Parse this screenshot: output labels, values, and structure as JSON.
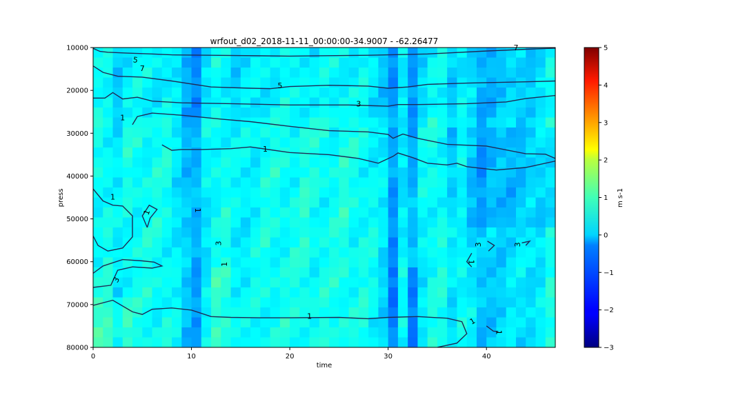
{
  "chart_data": {
    "type": "heatmap",
    "title": "wrfout_d02_2018-11-11_00:00:00-34.9007 - -62.26477",
    "xlabel": "time",
    "ylabel": "press",
    "xlim": [
      0,
      47
    ],
    "ylim": [
      80000,
      10000
    ],
    "x_ticks": [
      0,
      10,
      20,
      30,
      40
    ],
    "x_tick_labels": [
      "0",
      "10",
      "20",
      "30",
      "40"
    ],
    "y_ticks": [
      10000,
      20000,
      30000,
      40000,
      50000,
      60000,
      70000,
      80000
    ],
    "y_tick_labels": [
      "10000",
      "20000",
      "30000",
      "40000",
      "50000",
      "60000",
      "70000",
      "80000"
    ],
    "colormap": "jet",
    "colorbar": {
      "label": "m s-1",
      "vmin": -3,
      "vmax": 5,
      "ticks": [
        -3,
        -2,
        -1,
        0,
        1,
        2,
        3,
        4,
        5
      ],
      "tick_labels": [
        "−3",
        "−2",
        "−1",
        "0",
        "1",
        "2",
        "3",
        "4",
        "5"
      ]
    },
    "value_range_shown": [
      -1.2,
      1.0
    ],
    "contour_color": "#1f2a55",
    "contours": [
      {
        "level": 7,
        "points": [
          [
            0,
            10200
          ],
          [
            0.7,
            10900
          ],
          [
            1.5,
            11100
          ],
          [
            3.5,
            11300
          ],
          [
            6,
            11500
          ],
          [
            8,
            11700
          ],
          [
            12,
            11800
          ],
          [
            20,
            12000
          ],
          [
            28,
            11800
          ],
          [
            34,
            11500
          ],
          [
            40,
            10800
          ],
          [
            45,
            10300
          ],
          [
            47,
            10150
          ]
        ]
      },
      {
        "level": 5,
        "points": [
          [
            0,
            14300
          ],
          [
            1,
            15800
          ],
          [
            2.5,
            16700
          ],
          [
            5,
            16900
          ],
          [
            8,
            17800
          ],
          [
            12,
            19200
          ],
          [
            16,
            19500
          ],
          [
            18,
            19600
          ],
          [
            20,
            19100
          ],
          [
            24,
            18800
          ],
          [
            28,
            19000
          ],
          [
            30,
            19500
          ],
          [
            32,
            19200
          ],
          [
            34,
            18600
          ],
          [
            38,
            18300
          ],
          [
            44,
            18000
          ],
          [
            47,
            17800
          ]
        ]
      },
      {
        "level": 3,
        "points": [
          [
            0,
            21800
          ],
          [
            1.2,
            21800
          ],
          [
            2,
            20500
          ],
          [
            3,
            22000
          ],
          [
            4.5,
            21600
          ],
          [
            6,
            22500
          ],
          [
            9,
            22900
          ],
          [
            14,
            23100
          ],
          [
            20,
            23400
          ],
          [
            26,
            23400
          ],
          [
            30,
            23700
          ],
          [
            31,
            23300
          ],
          [
            33,
            23300
          ],
          [
            38,
            23100
          ],
          [
            42,
            22700
          ],
          [
            44,
            21900
          ],
          [
            47,
            21200
          ]
        ]
      },
      {
        "level": 1,
        "points": [
          [
            4,
            28000
          ],
          [
            4.5,
            26100
          ],
          [
            6,
            25300
          ],
          [
            9,
            25800
          ],
          [
            13,
            26700
          ],
          [
            16,
            27300
          ],
          [
            20,
            28400
          ],
          [
            24,
            29400
          ],
          [
            28,
            29700
          ],
          [
            30,
            30300
          ],
          [
            30.5,
            31200
          ],
          [
            31.5,
            30200
          ],
          [
            33,
            31200
          ],
          [
            36,
            32600
          ],
          [
            40,
            33000
          ],
          [
            44,
            34800
          ],
          [
            46,
            34900
          ],
          [
            47,
            35900
          ]
        ]
      },
      {
        "level": 1,
        "points": [
          [
            7,
            32700
          ],
          [
            8,
            34000
          ],
          [
            9,
            33800
          ],
          [
            11,
            33800
          ],
          [
            14,
            33600
          ],
          [
            16,
            33200
          ],
          [
            20,
            34500
          ],
          [
            24,
            35000
          ],
          [
            27,
            35900
          ],
          [
            29,
            37000
          ],
          [
            30.5,
            35400
          ],
          [
            31,
            34600
          ],
          [
            32.5,
            35700
          ],
          [
            34,
            37000
          ],
          [
            36,
            37400
          ],
          [
            37,
            37000
          ],
          [
            38,
            37800
          ],
          [
            41,
            38600
          ],
          [
            44,
            38000
          ],
          [
            47,
            36500
          ]
        ]
      },
      {
        "level": 1,
        "points": [
          [
            0,
            43000
          ],
          [
            1,
            45800
          ],
          [
            2,
            46800
          ],
          [
            3,
            47000
          ],
          [
            4,
            49300
          ],
          [
            4,
            54200
          ],
          [
            3,
            56800
          ],
          [
            1.5,
            57500
          ],
          [
            0.5,
            56200
          ],
          [
            0,
            54000
          ]
        ]
      },
      {
        "level": 3,
        "points": [
          [
            0,
            62700
          ],
          [
            1,
            61000
          ],
          [
            3,
            59500
          ],
          [
            5,
            59800
          ],
          [
            6.2,
            60100
          ],
          [
            7,
            61000
          ],
          [
            6,
            61500
          ],
          [
            4,
            61200
          ],
          [
            2.5,
            62000
          ],
          [
            1.8,
            65500
          ],
          [
            0,
            66000
          ]
        ]
      },
      {
        "level": 1,
        "points": [
          [
            0,
            70200
          ],
          [
            2,
            69000
          ],
          [
            4,
            71700
          ],
          [
            5,
            72300
          ],
          [
            6,
            71100
          ],
          [
            8,
            70800
          ],
          [
            10,
            71300
          ],
          [
            12,
            72800
          ],
          [
            14,
            73000
          ],
          [
            17,
            73100
          ],
          [
            20,
            73100
          ],
          [
            25,
            73000
          ],
          [
            28,
            73300
          ],
          [
            30,
            73000
          ],
          [
            33,
            72800
          ],
          [
            36,
            73200
          ],
          [
            37.5,
            74000
          ],
          [
            38,
            76800
          ],
          [
            37,
            79000
          ],
          [
            35,
            80000
          ]
        ]
      },
      {
        "level": 1,
        "points": [
          [
            5.5,
            52000
          ],
          [
            5.8,
            49800
          ],
          [
            6.5,
            47800
          ],
          [
            5.7,
            46800
          ],
          [
            5,
            49300
          ],
          [
            5.5,
            52000
          ]
        ]
      },
      {
        "level": 1,
        "points": [
          [
            38.5,
            58000
          ],
          [
            38,
            60000
          ],
          [
            38.5,
            61200
          ]
        ]
      },
      {
        "level": 3,
        "points": [
          [
            40.2,
            57500
          ],
          [
            40.8,
            56200
          ],
          [
            40.1,
            55200
          ]
        ]
      },
      {
        "level": 3,
        "points": [
          [
            44,
            56200
          ],
          [
            44.4,
            55200
          ],
          [
            43.6,
            55600
          ]
        ]
      },
      {
        "level": 1,
        "points": [
          [
            40,
            75000
          ],
          [
            40.7,
            76200
          ],
          [
            41.2,
            76300
          ]
        ]
      }
    ],
    "contour_labels": [
      {
        "text": "7",
        "x": 43,
        "y": 10200
      },
      {
        "text": "5",
        "x": 4.3,
        "y": 13000,
        "rot": 8
      },
      {
        "text": "7",
        "x": 5,
        "y": 15000
      },
      {
        "text": "5",
        "x": 19,
        "y": 19000
      },
      {
        "text": "3",
        "x": 27,
        "y": 23300
      },
      {
        "text": "1",
        "x": 3,
        "y": 26500
      },
      {
        "text": "1",
        "x": 17.5,
        "y": 33800
      },
      {
        "text": "1",
        "x": 2,
        "y": 45000
      },
      {
        "text": "1",
        "x": 5.5,
        "y": 48500,
        "rot": -70
      },
      {
        "text": "1",
        "x": 10.6,
        "y": 48000,
        "rot": 90
      },
      {
        "text": "3",
        "x": 12.8,
        "y": 55700,
        "rot": -90
      },
      {
        "text": "1",
        "x": 13.4,
        "y": 60600,
        "rot": -90
      },
      {
        "text": "3",
        "x": 2.4,
        "y": 64300,
        "rot": -60
      },
      {
        "text": "1",
        "x": 22,
        "y": 72800
      },
      {
        "text": "3",
        "x": 39.2,
        "y": 56000,
        "rot": -90
      },
      {
        "text": "3",
        "x": 43.2,
        "y": 56000,
        "rot": -90
      },
      {
        "text": "1",
        "x": 38.4,
        "y": 60100,
        "rot": 90
      },
      {
        "text": "1",
        "x": 38.6,
        "y": 74000,
        "rot": -30
      },
      {
        "text": "1",
        "x": 41.2,
        "y": 76500,
        "rot": 90
      }
    ]
  }
}
